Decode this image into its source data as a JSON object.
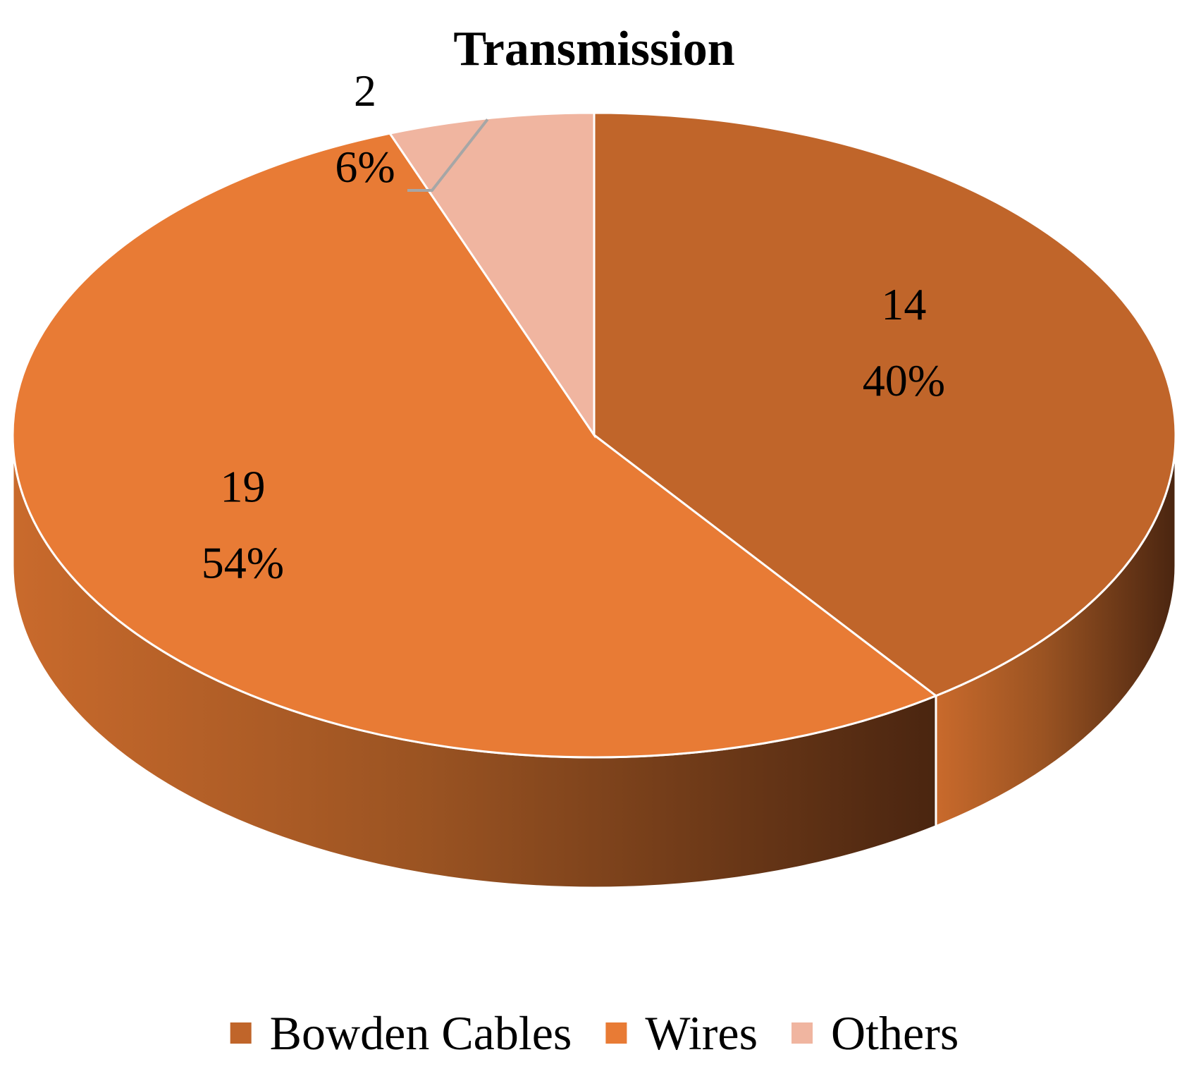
{
  "chart_data": {
    "type": "pie",
    "title": "Transmission",
    "categories": [
      "Bowden Cables",
      "Wires",
      "Others"
    ],
    "values": [
      14,
      19,
      2
    ],
    "percent_labels": [
      "40%",
      "54%",
      "6%"
    ],
    "colors": [
      "#C0652A",
      "#E87B35",
      "#F0B5A0"
    ],
    "legend_position": "bottom",
    "style": "3d"
  }
}
